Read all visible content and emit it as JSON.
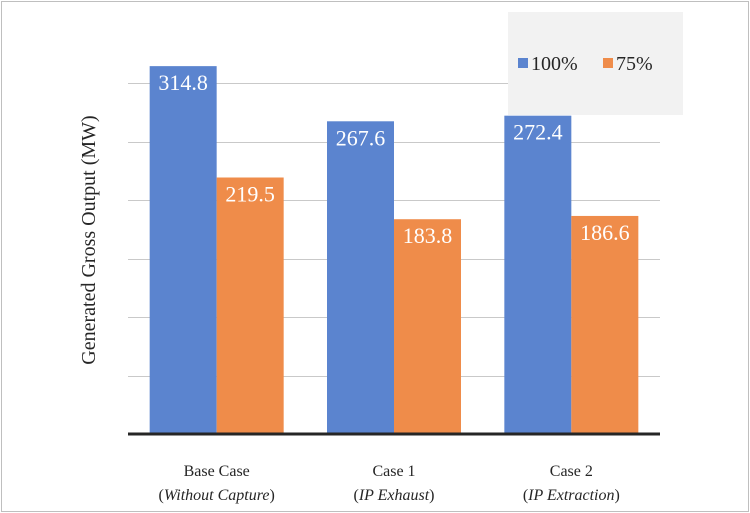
{
  "chart_data": {
    "type": "bar",
    "ylabel": "Generated Gross Output (MW)",
    "categories": [
      {
        "main": "Base Case",
        "sub_pre": "(",
        "sub_italic": "Without Capture",
        "sub_post": ")"
      },
      {
        "main": "Case 1",
        "sub_pre": "(",
        "sub_italic": "IP Exhaust",
        "sub_post": ")"
      },
      {
        "main": "Case 2",
        "sub_pre": "(",
        "sub_italic": "IP Extraction",
        "sub_post": ")"
      }
    ],
    "series": [
      {
        "name": "100%",
        "values": [
          314.8,
          267.6,
          272.4
        ],
        "color": "#5b84cf"
      },
      {
        "name": "75%",
        "values": [
          219.5,
          183.8,
          186.6
        ],
        "color": "#ef8c4a"
      }
    ],
    "ylim": [
      0,
      350
    ],
    "gridlines": [
      50,
      100,
      150,
      200,
      250,
      300
    ],
    "grid": true,
    "legend_position": "top-right"
  }
}
